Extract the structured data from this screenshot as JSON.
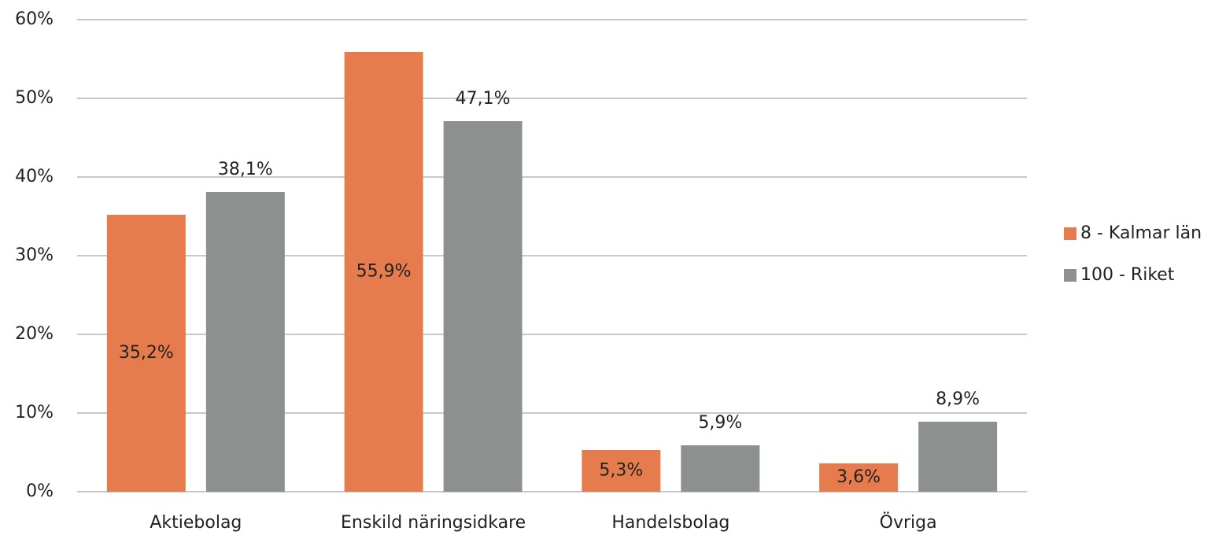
{
  "chart_data": {
    "type": "bar",
    "categories": [
      "Aktiebolag",
      "Enskild näringsidkare",
      "Handelsbolag",
      "Övriga"
    ],
    "series": [
      {
        "name": "8 - Kalmar län",
        "color": "#e67c4e",
        "values": [
          35.2,
          55.9,
          5.3,
          3.6
        ],
        "value_labels": [
          "35,2%",
          "55,9%",
          "5,3%",
          "3,6%"
        ]
      },
      {
        "name": "100 - Riket",
        "color": "#8c918f",
        "values": [
          38.1,
          47.1,
          5.9,
          8.9
        ],
        "value_labels": [
          "38,1%",
          "47,1%",
          "5,9%",
          "8,9%"
        ]
      }
    ],
    "ylim": [
      0,
      60
    ],
    "yticks": [
      {
        "value": 0,
        "label": "0%"
      },
      {
        "value": 10,
        "label": "10%"
      },
      {
        "value": 20,
        "label": "20%"
      },
      {
        "value": 30,
        "label": "30%"
      },
      {
        "value": 40,
        "label": "40%"
      },
      {
        "value": 50,
        "label": "50%"
      },
      {
        "value": 60,
        "label": "60%"
      }
    ],
    "grid": true,
    "legend": "right"
  }
}
